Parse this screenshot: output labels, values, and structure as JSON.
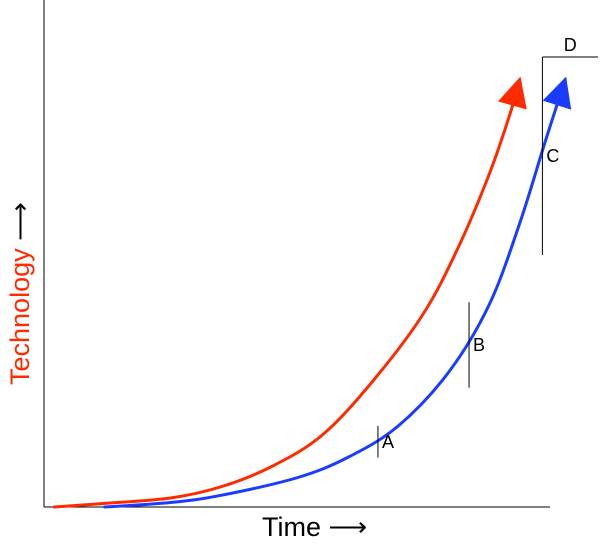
{
  "chart_data": {
    "type": "line",
    "title": "",
    "xlabel": "Time",
    "ylabel": "Technology",
    "xlim": [
      0,
      100
    ],
    "ylim": [
      0,
      100
    ],
    "grid": false,
    "axis_arrow_glyph": "⟶",
    "colors": {
      "xlabel": "#000000",
      "ylabel": "#ff2a00"
    },
    "series": [
      {
        "color": "#ff2a00",
        "arrow_end": true,
        "points": [
          [
            2,
            0.0
          ],
          [
            12,
            0.8
          ],
          [
            25,
            2.0
          ],
          [
            35,
            4.5
          ],
          [
            45,
            9.0
          ],
          [
            55,
            16.0
          ],
          [
            65,
            28.0
          ],
          [
            75,
            43.0
          ],
          [
            82,
            58.0
          ],
          [
            88,
            74.0
          ],
          [
            92,
            87.0
          ],
          [
            94,
            95.0
          ]
        ]
      },
      {
        "color": "#1a3cff",
        "arrow_end": true,
        "points": [
          [
            12,
            0.0
          ],
          [
            25,
            1.0
          ],
          [
            35,
            2.6
          ],
          [
            50,
            6.5
          ],
          [
            60,
            11.0
          ],
          [
            70,
            18.0
          ],
          [
            80,
            30.0
          ],
          [
            88,
            45.0
          ],
          [
            94,
            63.0
          ],
          [
            99,
            81.0
          ],
          [
            103,
            95.0
          ]
        ]
      }
    ],
    "annotations": [
      {
        "label": "A",
        "type": "vertical",
        "x": 66,
        "y1": 11.0,
        "y2": 18.0
      },
      {
        "label": "B",
        "type": "vertical",
        "x": 84,
        "y1": 26.5,
        "y2": 45.5
      },
      {
        "label": "C",
        "type": "vertical",
        "x": 98.5,
        "y1": 56.0,
        "y2": 100.0
      },
      {
        "label": "D",
        "type": "horizontal",
        "y": 100.0,
        "x1": 98.5,
        "x2": 109.5
      }
    ]
  }
}
